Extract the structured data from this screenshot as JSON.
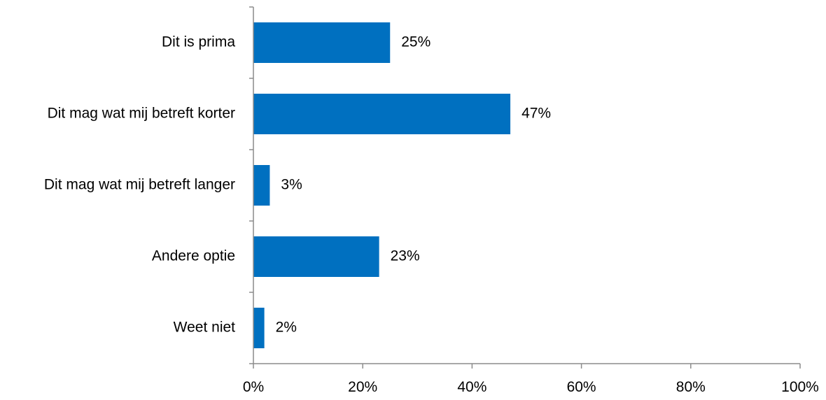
{
  "chart_data": {
    "type": "bar",
    "orientation": "horizontal",
    "categories": [
      "Dit is prima",
      "Dit mag wat mij betreft korter",
      "Dit mag wat mij betreft langer",
      "Andere optie",
      "Weet niet"
    ],
    "values": [
      25,
      47,
      3,
      23,
      2
    ],
    "value_labels": [
      "25%",
      "47%",
      "3%",
      "23%",
      "2%"
    ],
    "x_ticks": [
      0,
      20,
      40,
      60,
      80,
      100
    ],
    "x_tick_labels": [
      "0%",
      "20%",
      "40%",
      "60%",
      "80%",
      "100%"
    ],
    "xlim": [
      0,
      100
    ],
    "title": "",
    "xlabel": "",
    "ylabel": "",
    "grid": false,
    "legend": "none",
    "bar_color": "#0070C0"
  }
}
